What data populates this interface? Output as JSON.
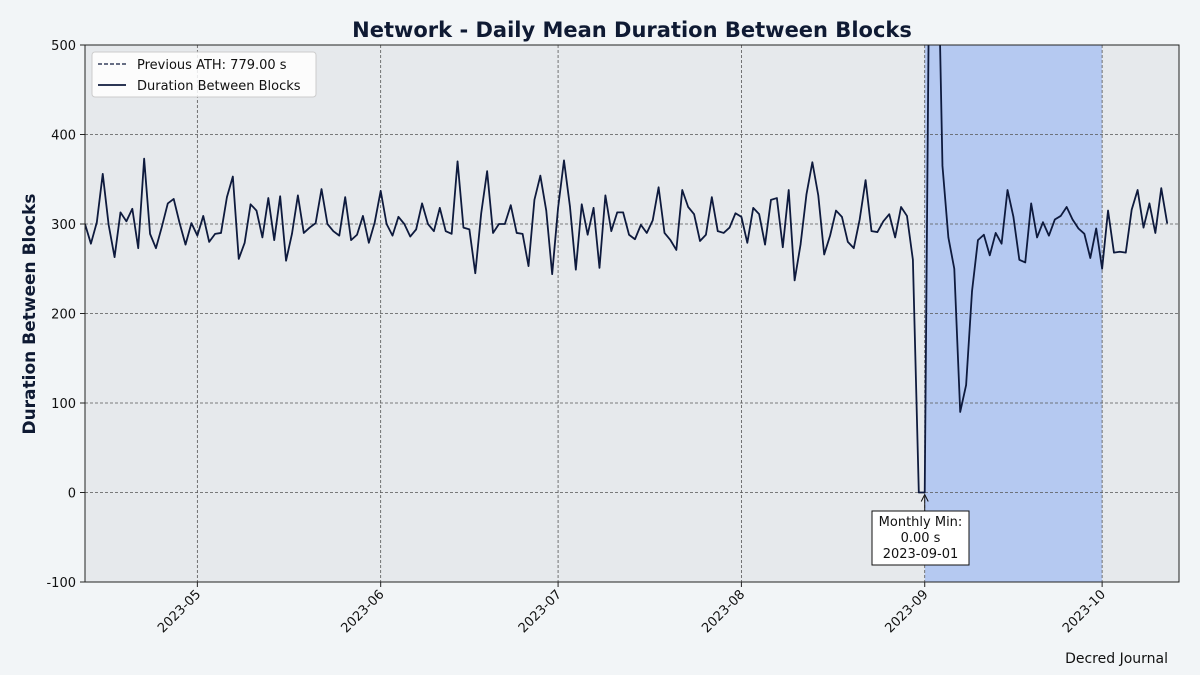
{
  "chart_data": {
    "type": "line",
    "title": "Network - Daily Mean Duration Between Blocks",
    "ylabel": "Duration Between Blocks",
    "xlabel": "",
    "x_start": "2023-04-12",
    "x_end": "2023-10-14",
    "ylim": [
      -100,
      500
    ],
    "yticks": [
      -100,
      0,
      100,
      200,
      300,
      400,
      500
    ],
    "xticks": [
      {
        "label": "2023-05",
        "date": "2023-05-01"
      },
      {
        "label": "2023-06",
        "date": "2023-06-01"
      },
      {
        "label": "2023-07",
        "date": "2023-07-01"
      },
      {
        "label": "2023-08",
        "date": "2023-08-01"
      },
      {
        "label": "2023-09",
        "date": "2023-09-01"
      },
      {
        "label": "2023-10",
        "date": "2023-10-01"
      }
    ],
    "grid": true,
    "legend": {
      "placement": "upper-left",
      "entries": [
        {
          "label": "Previous ATH: 779.00 s",
          "style": "dashed"
        },
        {
          "label": "Duration Between Blocks",
          "style": "solid"
        }
      ]
    },
    "reference_lines": [
      {
        "name": "Previous ATH",
        "value": 779.0,
        "unit": "s"
      }
    ],
    "highlight_range": {
      "start": "2023-09-01",
      "end": "2023-10-01",
      "color": "#b5c9f1"
    },
    "annotation": {
      "lines": [
        "Monthly Min:",
        "0.00 s",
        "2023-09-01"
      ],
      "x": "2023-09-01",
      "y": 0
    },
    "series": [
      {
        "name": "Duration Between Blocks",
        "color": "#0e1a3d",
        "start_date": "2023-04-12",
        "values": [
          300,
          278,
          302,
          356,
          299,
          263,
          313,
          303,
          317,
          273,
          373,
          289,
          273,
          297,
          323,
          328,
          301,
          277,
          301,
          287,
          309,
          280,
          289,
          290,
          330,
          353,
          261,
          279,
          322,
          315,
          285,
          329,
          282,
          331,
          259,
          289,
          332,
          290,
          296,
          301,
          339,
          300,
          292,
          287,
          330,
          282,
          288,
          309,
          279,
          302,
          337,
          300,
          287,
          308,
          300,
          286,
          294,
          323,
          300,
          292,
          318,
          292,
          289,
          370,
          296,
          294,
          245,
          312,
          359,
          290,
          300,
          300,
          321,
          290,
          289,
          253,
          327,
          354,
          315,
          244,
          318,
          371,
          320,
          249,
          322,
          288,
          318,
          251,
          332,
          292,
          313,
          313,
          288,
          283,
          299,
          290,
          304,
          341,
          290,
          282,
          271,
          338,
          319,
          311,
          281,
          288,
          330,
          292,
          290,
          296,
          312,
          308,
          279,
          318,
          311,
          277,
          327,
          329,
          274,
          338,
          237,
          277,
          333,
          369,
          332,
          266,
          287,
          315,
          308,
          280,
          273,
          305,
          349,
          292,
          291,
          303,
          311,
          285,
          319,
          309,
          260,
          0,
          0,
          779,
          700,
          365,
          285,
          250,
          90,
          120,
          225,
          282,
          288,
          265,
          290,
          278,
          338,
          308,
          260,
          257,
          323,
          285,
          302,
          287,
          305,
          309,
          319,
          305,
          295,
          289,
          262,
          295,
          250,
          315,
          268,
          269,
          268,
          316,
          338,
          296,
          323,
          290,
          340,
          301
        ]
      }
    ]
  },
  "watermark": "Decred Journal"
}
